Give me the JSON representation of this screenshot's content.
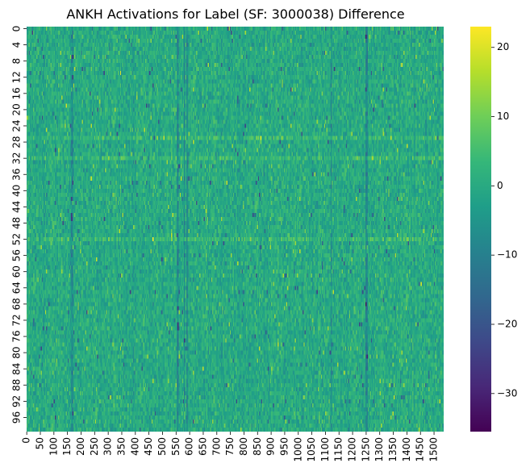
{
  "chart_data": {
    "type": "heatmap",
    "title": "ANKH Activations for Label (SF: 3000038) Difference",
    "xlabel": "",
    "ylabel": "",
    "colormap": "viridis",
    "rows": 100,
    "columns": 1536,
    "x_ticks": [
      "0",
      "50",
      "100",
      "150",
      "200",
      "250",
      "300",
      "350",
      "400",
      "450",
      "500",
      "550",
      "600",
      "650",
      "700",
      "750",
      "800",
      "850",
      "900",
      "950",
      "1000",
      "1050",
      "1100",
      "1150",
      "1200",
      "1250",
      "1300",
      "1350",
      "1400",
      "1450",
      "1500"
    ],
    "y_ticks": [
      "0",
      "4",
      "8",
      "12",
      "16",
      "20",
      "24",
      "28",
      "32",
      "36",
      "40",
      "44",
      "48",
      "52",
      "56",
      "60",
      "64",
      "68",
      "72",
      "76",
      "80",
      "84",
      "88",
      "92",
      "96"
    ],
    "colorbar": {
      "vmin": -35.5,
      "vmax": 23,
      "ticks": [
        "20",
        "10",
        "0",
        "−10",
        "−20",
        "−30"
      ],
      "tick_values": [
        20,
        10,
        0,
        -10,
        -20,
        -30
      ]
    },
    "dominant_value": 0,
    "dark_column_bands": [
      165,
      555,
      580,
      590,
      1120,
      1250
    ],
    "bright_row_bands": [
      32,
      27,
      52
    ],
    "colors": {
      "viridis": [
        "#440154",
        "#482878",
        "#3e4989",
        "#31688e",
        "#26828e",
        "#1f9e89",
        "#35b779",
        "#6ece58",
        "#b5de2b",
        "#fde725"
      ]
    }
  }
}
